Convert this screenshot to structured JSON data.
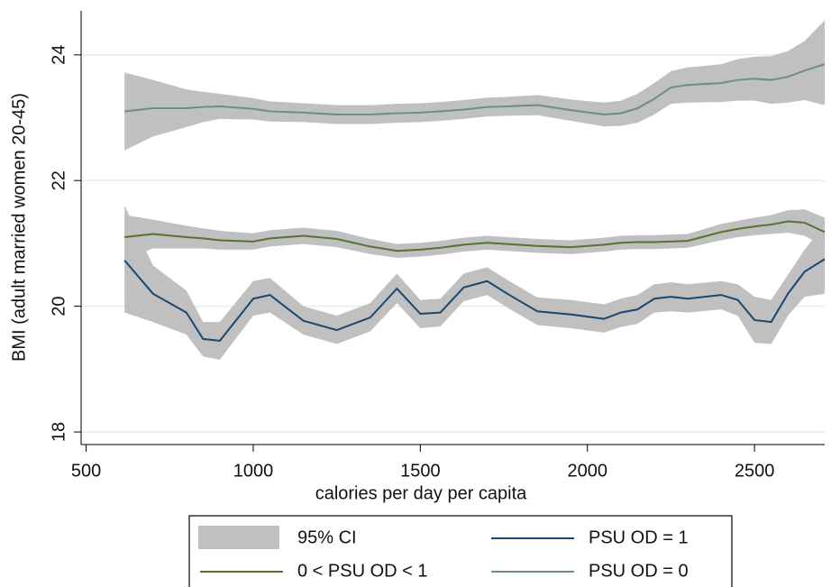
{
  "chart_data": {
    "type": "line",
    "x_label": "calories per day per capita",
    "y_label": "BMI (adult married women 20-45)",
    "xlim": [
      485,
      2710
    ],
    "ylim": [
      17.8,
      24.7
    ],
    "xticks": [
      500,
      1000,
      1500,
      2000,
      2500
    ],
    "yticks": [
      18,
      20,
      22,
      24
    ],
    "grid": true,
    "legend": "bottom",
    "ci_name": "95% CI",
    "ci_color": "#c0c0c0",
    "x": [
      615,
      700,
      800,
      850,
      900,
      1000,
      1050,
      1150,
      1250,
      1350,
      1430,
      1500,
      1560,
      1630,
      1700,
      1760,
      1850,
      1950,
      2050,
      2100,
      2150,
      2200,
      2250,
      2300,
      2400,
      2450,
      2500,
      2550,
      2600,
      2650,
      2710
    ],
    "series": [
      {
        "name": "PSU OD = 1",
        "color": "#1a476f",
        "values": [
          20.73,
          20.2,
          19.9,
          19.48,
          19.45,
          20.12,
          20.18,
          19.77,
          19.62,
          19.82,
          20.28,
          19.88,
          19.9,
          20.3,
          20.4,
          20.2,
          19.92,
          19.87,
          19.8,
          19.9,
          19.95,
          20.12,
          20.15,
          20.12,
          20.18,
          20.1,
          19.78,
          19.75,
          20.2,
          20.55,
          20.75
        ],
        "lower": [
          19.9,
          19.75,
          19.55,
          19.2,
          19.15,
          19.85,
          19.9,
          19.55,
          19.4,
          19.6,
          20.05,
          19.65,
          19.68,
          20.08,
          20.18,
          19.98,
          19.7,
          19.65,
          19.58,
          19.67,
          19.72,
          19.9,
          19.92,
          19.9,
          19.95,
          19.85,
          19.42,
          19.4,
          19.85,
          20.15,
          20.2
        ],
        "upper": [
          21.6,
          20.65,
          20.25,
          19.75,
          19.75,
          20.4,
          20.45,
          20.0,
          19.85,
          20.05,
          20.52,
          20.1,
          20.12,
          20.52,
          20.62,
          20.42,
          20.14,
          20.1,
          20.03,
          20.12,
          20.18,
          20.35,
          20.38,
          20.35,
          20.4,
          20.35,
          20.15,
          20.1,
          20.5,
          20.9,
          21.3
        ]
      },
      {
        "name": "0 < PSU OD < 1",
        "color": "#55752f",
        "values": [
          21.1,
          21.15,
          21.1,
          21.08,
          21.05,
          21.03,
          21.08,
          21.12,
          21.07,
          20.95,
          20.88,
          20.9,
          20.93,
          20.98,
          21.01,
          20.99,
          20.96,
          20.94,
          20.98,
          21.01,
          21.02,
          21.02,
          21.03,
          21.04,
          21.18,
          21.23,
          21.27,
          21.3,
          21.35,
          21.33,
          21.18
        ],
        "lower": [
          20.75,
          20.92,
          20.92,
          20.92,
          20.9,
          20.9,
          20.95,
          20.99,
          20.94,
          20.83,
          20.77,
          20.79,
          20.82,
          20.87,
          20.9,
          20.88,
          20.85,
          20.83,
          20.87,
          20.9,
          20.91,
          20.91,
          20.92,
          20.93,
          21.05,
          21.1,
          21.13,
          21.15,
          21.17,
          21.12,
          20.95
        ],
        "upper": [
          21.45,
          21.38,
          21.28,
          21.24,
          21.2,
          21.16,
          21.21,
          21.25,
          21.2,
          21.07,
          20.99,
          21.01,
          21.04,
          21.09,
          21.12,
          21.1,
          21.07,
          21.05,
          21.09,
          21.12,
          21.13,
          21.13,
          21.14,
          21.15,
          21.31,
          21.36,
          21.41,
          21.45,
          21.53,
          21.54,
          21.41
        ]
      },
      {
        "name": "PSU OD = 0",
        "color": "#6e8e84",
        "values": [
          23.1,
          23.15,
          23.15,
          23.17,
          23.18,
          23.14,
          23.1,
          23.08,
          23.05,
          23.05,
          23.07,
          23.08,
          23.1,
          23.13,
          23.17,
          23.18,
          23.2,
          23.12,
          23.05,
          23.07,
          23.15,
          23.3,
          23.48,
          23.52,
          23.55,
          23.6,
          23.62,
          23.6,
          23.65,
          23.75,
          23.85
        ],
        "lower": [
          22.48,
          22.7,
          22.85,
          22.93,
          22.98,
          22.97,
          22.94,
          22.93,
          22.9,
          22.9,
          22.92,
          22.93,
          22.95,
          22.98,
          23.02,
          23.03,
          23.04,
          22.95,
          22.86,
          22.87,
          22.92,
          23.05,
          23.22,
          23.24,
          23.25,
          23.27,
          23.27,
          23.22,
          23.24,
          23.28,
          23.2
        ],
        "upper": [
          23.72,
          23.6,
          23.45,
          23.41,
          23.38,
          23.31,
          23.26,
          23.23,
          23.2,
          23.2,
          23.22,
          23.23,
          23.25,
          23.28,
          23.32,
          23.33,
          23.36,
          23.29,
          23.24,
          23.27,
          23.38,
          23.55,
          23.74,
          23.8,
          23.85,
          23.93,
          23.97,
          23.98,
          24.06,
          24.22,
          24.55
        ]
      }
    ]
  }
}
